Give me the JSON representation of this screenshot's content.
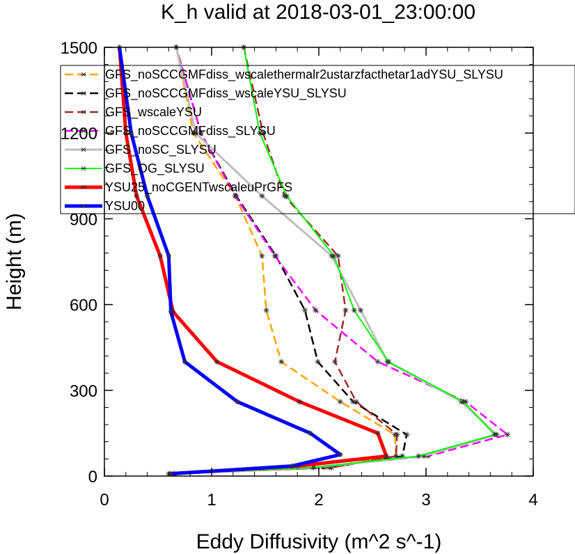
{
  "chart_data": {
    "type": "line",
    "title": "K_h valid at 2018-03-01_23:00:00",
    "xlabel": "Eddy Diffusivity (m^2 s^-1)",
    "ylabel": "Height (m)",
    "xlim": [
      0,
      4
    ],
    "ylim": [
      0,
      1500
    ],
    "xticks": [
      "0",
      "1",
      "2",
      "3",
      "4"
    ],
    "yticks": [
      "0",
      "300",
      "600",
      "900",
      "1200",
      "1500"
    ],
    "legend_position": "top-right",
    "grid": false,
    "series": [
      {
        "name": "GFS_noSCCGMFdiss_wscalethermalr2ustarzfacthetar1adYSU_SLYSU",
        "color": "#ffa500",
        "dash": "dashed",
        "width": 2.5,
        "points": [
          [
            0.62,
            8
          ],
          [
            2.05,
            30
          ],
          [
            2.72,
            70
          ],
          [
            2.71,
            145
          ],
          [
            2.2,
            260
          ],
          [
            1.65,
            400
          ],
          [
            1.51,
            580
          ],
          [
            1.47,
            770
          ],
          [
            1.22,
            980
          ],
          [
            0.83,
            1200
          ],
          [
            0.67,
            1500
          ]
        ]
      },
      {
        "name": "GFS_noSCCGMFdiss_wscaleYSU_SLYSU",
        "color": "#000000",
        "dash": "dashed",
        "width": 2.5,
        "points": [
          [
            0.62,
            8
          ],
          [
            2.1,
            30
          ],
          [
            2.78,
            70
          ],
          [
            2.82,
            145
          ],
          [
            2.32,
            260
          ],
          [
            1.99,
            400
          ],
          [
            1.87,
            580
          ],
          [
            1.6,
            770
          ],
          [
            1.23,
            980
          ],
          [
            0.9,
            1200
          ],
          [
            0.67,
            1500
          ]
        ]
      },
      {
        "name": "GFS_wscaleYSU",
        "color": "#a52a2a",
        "dash": "dashed",
        "width": 2.5,
        "points": [
          [
            0.65,
            8
          ],
          [
            2.12,
            30
          ],
          [
            2.72,
            70
          ],
          [
            2.73,
            145
          ],
          [
            2.35,
            260
          ],
          [
            2.15,
            400
          ],
          [
            2.25,
            580
          ],
          [
            2.18,
            770
          ],
          [
            1.68,
            980
          ],
          [
            1.48,
            1200
          ],
          [
            1.3,
            1500
          ]
        ]
      },
      {
        "name": "GFS_noSCCGMFdiss_SLYSU",
        "color": "#ff00ff",
        "dash": "dashed",
        "width": 2.5,
        "points": [
          [
            0.65,
            8
          ],
          [
            1.95,
            30
          ],
          [
            3.02,
            70
          ],
          [
            3.76,
            145
          ],
          [
            3.37,
            260
          ],
          [
            2.55,
            400
          ],
          [
            1.97,
            580
          ],
          [
            1.59,
            770
          ],
          [
            1.22,
            980
          ],
          [
            0.9,
            1200
          ],
          [
            0.67,
            1500
          ]
        ]
      },
      {
        "name": "GFS_noSC_SLYSU",
        "color": "#bebebe",
        "dash": "solid",
        "width": 3,
        "points": [
          [
            0.65,
            8
          ],
          [
            1.95,
            30
          ],
          [
            2.98,
            70
          ],
          [
            3.66,
            145
          ],
          [
            3.33,
            260
          ],
          [
            2.64,
            400
          ],
          [
            2.39,
            580
          ],
          [
            2.12,
            770
          ],
          [
            1.47,
            980
          ],
          [
            0.85,
            1200
          ],
          [
            0.67,
            1500
          ]
        ]
      },
      {
        "name": "GFS_OG_SLYSU",
        "color": "#00ff00",
        "dash": "solid",
        "width": 2,
        "points": [
          [
            0.65,
            8
          ],
          [
            1.95,
            30
          ],
          [
            2.93,
            70
          ],
          [
            3.64,
            145
          ],
          [
            3.35,
            260
          ],
          [
            2.65,
            400
          ],
          [
            2.33,
            580
          ],
          [
            2.14,
            770
          ],
          [
            1.7,
            980
          ],
          [
            1.45,
            1200
          ],
          [
            1.3,
            1500
          ]
        ]
      },
      {
        "name": "YSU25_noCGENTwscaleuPrGFS",
        "color": "#ff0000",
        "dash": "solid",
        "width": 5,
        "points": [
          [
            0.6,
            8
          ],
          [
            1.8,
            35
          ],
          [
            2.63,
            70
          ],
          [
            2.55,
            150
          ],
          [
            1.82,
            260
          ],
          [
            1.05,
            400
          ],
          [
            0.64,
            575
          ],
          [
            0.52,
            770
          ],
          [
            0.3,
            980
          ],
          [
            0.2,
            1200
          ],
          [
            0.14,
            1500
          ]
        ]
      },
      {
        "name": "YSU00",
        "color": "#0000ff",
        "dash": "solid",
        "width": 5,
        "points": [
          [
            0.62,
            8
          ],
          [
            1.75,
            35
          ],
          [
            2.2,
            75
          ],
          [
            1.92,
            150
          ],
          [
            1.24,
            260
          ],
          [
            0.75,
            400
          ],
          [
            0.62,
            575
          ],
          [
            0.6,
            770
          ],
          [
            0.4,
            980
          ],
          [
            0.25,
            1200
          ],
          [
            0.14,
            1500
          ]
        ]
      }
    ]
  }
}
